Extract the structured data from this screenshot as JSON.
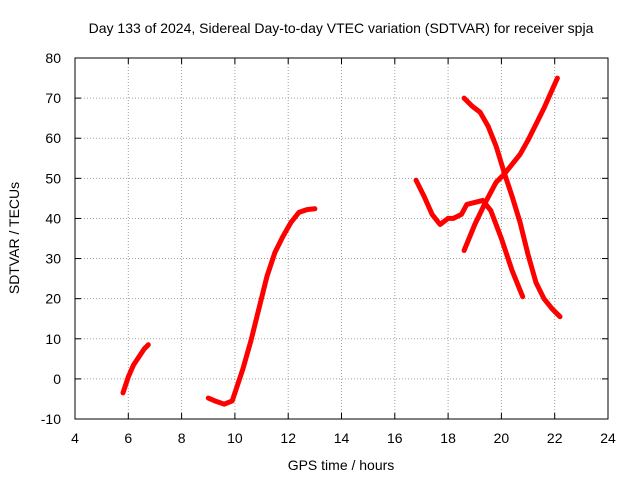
{
  "chart_data": {
    "type": "line",
    "title": "Day 133 of 2024, Sidereal Day-to-day VTEC variation (SDTVAR) for receiver spja",
    "xlabel": "GPS time / hours",
    "ylabel": "SDTVAR / TECUs",
    "xlim": [
      4,
      24
    ],
    "ylim": [
      -10,
      80
    ],
    "xticks": [
      4,
      6,
      8,
      10,
      12,
      14,
      16,
      18,
      20,
      22,
      24
    ],
    "yticks": [
      -10,
      0,
      10,
      20,
      30,
      40,
      50,
      60,
      70,
      80
    ],
    "grid": true,
    "legend": "none",
    "series_color": "#ff0000",
    "series": [
      {
        "x": [
          5.8,
          6.0,
          6.2,
          6.4,
          6.6,
          6.75
        ],
        "y": [
          -3.5,
          0.5,
          3.5,
          5.5,
          7.5,
          8.5
        ]
      },
      {
        "x": [
          9.0,
          9.3,
          9.6,
          9.9,
          10.0,
          10.3,
          10.6,
          10.9,
          11.2,
          11.5,
          11.8,
          12.1,
          12.4,
          12.7,
          13.0
        ],
        "y": [
          -4.8,
          -5.6,
          -6.3,
          -5.5,
          -3.5,
          2.5,
          9.5,
          17.5,
          25.5,
          31.5,
          35.5,
          39.0,
          41.5,
          42.2,
          42.4
        ]
      },
      {
        "x": [
          16.8,
          17.1,
          17.4,
          17.7,
          18.0,
          18.2,
          18.5,
          18.7,
          19.0,
          19.3,
          19.6,
          20.0,
          20.4,
          20.8
        ],
        "y": [
          49.5,
          45.5,
          41.0,
          38.5,
          40.0,
          40.0,
          41.0,
          43.5,
          44.0,
          44.5,
          42.0,
          35.0,
          27.0,
          20.5
        ]
      },
      {
        "x": [
          18.6,
          19.0,
          19.4,
          19.8,
          20.1,
          20.4,
          20.7,
          21.0,
          21.3,
          21.6,
          21.9,
          22.1
        ],
        "y": [
          32.0,
          38.5,
          44.0,
          49.0,
          51.0,
          53.5,
          56.0,
          59.5,
          63.5,
          67.5,
          72.0,
          75.0
        ]
      },
      {
        "x": [
          18.6,
          18.9,
          19.2,
          19.5,
          19.8,
          20.1,
          20.4,
          20.7,
          21.0,
          21.3,
          21.6,
          21.9,
          22.2
        ],
        "y": [
          70.0,
          68.0,
          66.5,
          63.0,
          58.0,
          51.5,
          45.5,
          39.0,
          31.0,
          24.0,
          20.0,
          17.5,
          15.5
        ]
      }
    ]
  }
}
